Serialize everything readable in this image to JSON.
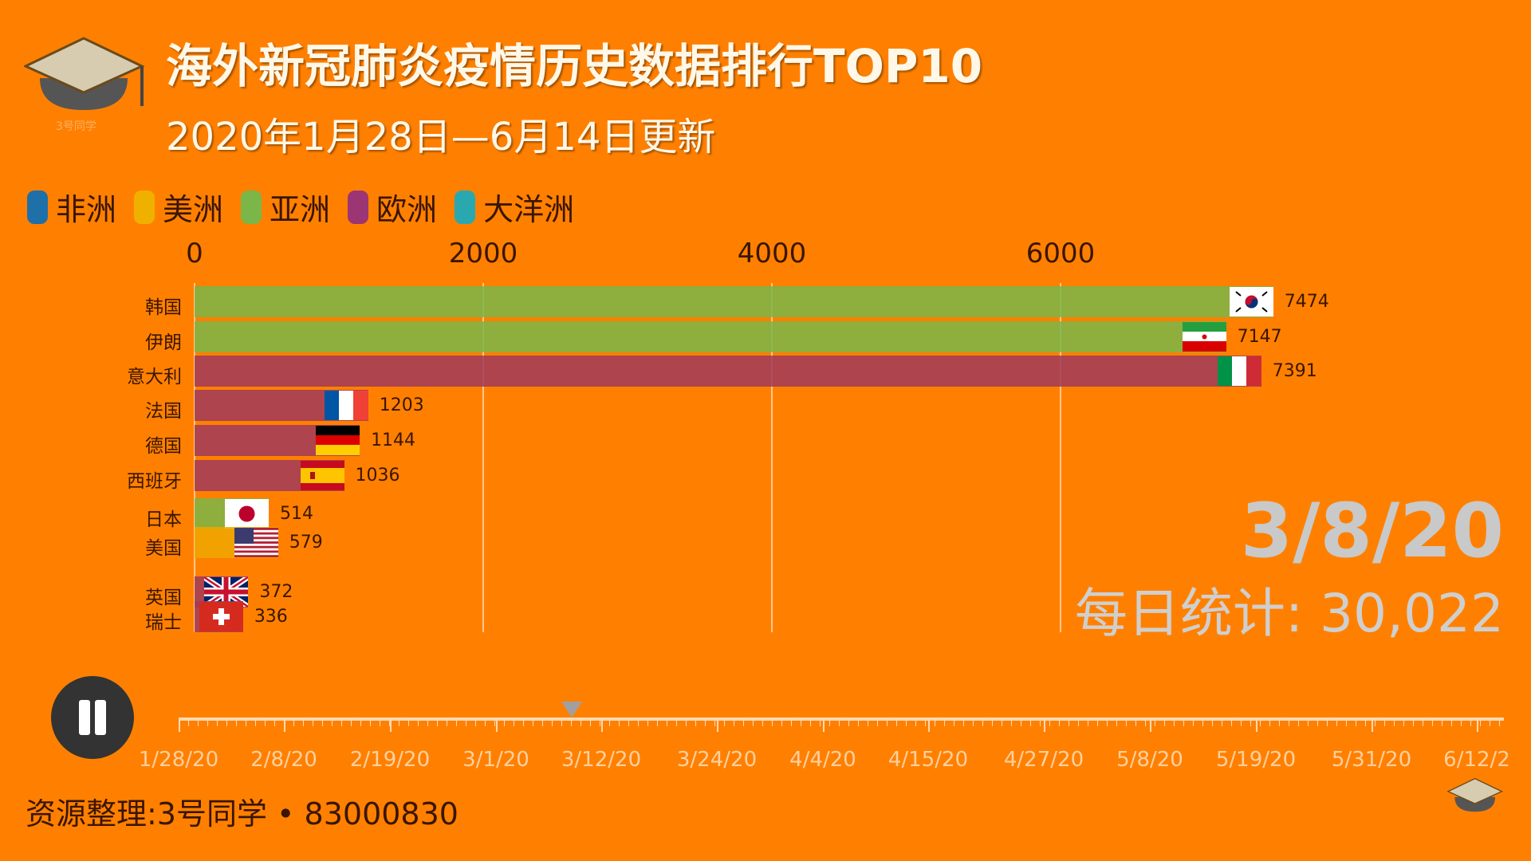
{
  "header": {
    "title": "海外新冠肺炎疫情历史数据排行TOP10",
    "subtitle": "2020年1月28日—6月14日更新",
    "logo_text": "3号同学"
  },
  "legend": [
    {
      "label": "非洲",
      "color": "#1f6fa8"
    },
    {
      "label": "美洲",
      "color": "#f0b000"
    },
    {
      "label": "亚洲",
      "color": "#7ab648"
    },
    {
      "label": "欧洲",
      "color": "#9b3574"
    },
    {
      "label": "大洋洲",
      "color": "#2aa8b0"
    }
  ],
  "chart_data": {
    "type": "bar",
    "orientation": "horizontal",
    "x_ticks": [
      "0",
      "2000",
      "4000",
      "6000"
    ],
    "xlim": [
      0,
      7500
    ],
    "grid": true,
    "legend_position": "top-left",
    "categories": [
      "韩国",
      "伊朗",
      "意大利",
      "法国",
      "德国",
      "西班牙",
      "日本",
      "美国",
      "英国",
      "瑞士"
    ],
    "values": [
      7474,
      7147,
      7391,
      1203,
      1144,
      1036,
      514,
      579,
      372,
      336
    ],
    "regions": [
      "亚洲",
      "亚洲",
      "欧洲",
      "欧洲",
      "欧洲",
      "欧洲",
      "亚洲",
      "美洲",
      "欧洲",
      "欧洲"
    ],
    "flags": [
      "korea",
      "iran",
      "italy",
      "france",
      "germany",
      "spain",
      "japan",
      "usa",
      "uk",
      "switzerland"
    ],
    "region_colors": {
      "亚洲": "#7ab648",
      "欧洲": "#a0395a",
      "美洲": "#f0a800"
    }
  },
  "status": {
    "date": "3/8/20",
    "daily_label": "每日统计: 30,022"
  },
  "timeline": {
    "labels": [
      "1/28/20",
      "2/8/20",
      "2/19/20",
      "3/1/20",
      "3/12/20",
      "3/24/20",
      "4/4/20",
      "4/15/20",
      "4/27/20",
      "5/8/20",
      "5/19/20",
      "5/31/20",
      "6/12/2"
    ],
    "current": "3/8/20",
    "playing": true
  },
  "footer": {
    "text": "资源整理:3号同学 • 83000830"
  }
}
